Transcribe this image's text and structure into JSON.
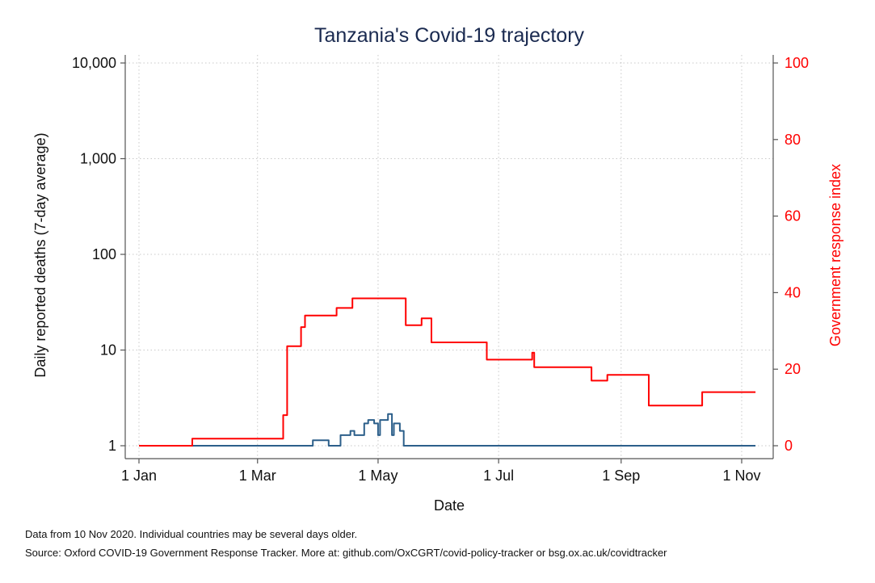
{
  "chart_data": {
    "type": "line",
    "title": "Tanzania's Covid-19 trajectory",
    "xlabel": "Date",
    "ylabel_left": "Daily reported deaths (7-day average)",
    "ylabel_right": "Government response index",
    "x_ticks": [
      {
        "date": "2020-01-01",
        "label": "1 Jan"
      },
      {
        "date": "2020-03-01",
        "label": "1 Mar"
      },
      {
        "date": "2020-05-01",
        "label": "1 May"
      },
      {
        "date": "2020-07-01",
        "label": "1 Jul"
      },
      {
        "date": "2020-09-01",
        "label": "1 Sep"
      },
      {
        "date": "2020-11-01",
        "label": "1 Nov"
      }
    ],
    "xlim": [
      "2020-01-01",
      "2020-11-10"
    ],
    "y_left": {
      "scale": "log",
      "lim": [
        1,
        10000
      ],
      "ticks": [
        {
          "value": 1,
          "label": "1"
        },
        {
          "value": 10,
          "label": "10"
        },
        {
          "value": 100,
          "label": "100"
        },
        {
          "value": 1000,
          "label": "1,000"
        },
        {
          "value": 10000,
          "label": "10,000"
        }
      ]
    },
    "y_right": {
      "scale": "linear",
      "lim": [
        0,
        100
      ],
      "ticks": [
        {
          "value": 0,
          "label": "0"
        },
        {
          "value": 20,
          "label": "20"
        },
        {
          "value": 40,
          "label": "40"
        },
        {
          "value": 60,
          "label": "60"
        },
        {
          "value": 80,
          "label": "80"
        },
        {
          "value": 100,
          "label": "100"
        }
      ]
    },
    "grid": true,
    "series": [
      {
        "axis": "left",
        "color": "#2c5f8a",
        "step": true,
        "points": [
          [
            "2020-01-01",
            1
          ],
          [
            "2020-03-29",
            1.14
          ],
          [
            "2020-04-06",
            1
          ],
          [
            "2020-04-12",
            1.29
          ],
          [
            "2020-04-17",
            1.43
          ],
          [
            "2020-04-19",
            1.29
          ],
          [
            "2020-04-24",
            1.71
          ],
          [
            "2020-04-26",
            1.86
          ],
          [
            "2020-04-29",
            1.71
          ],
          [
            "2020-05-01",
            1.29
          ],
          [
            "2020-05-02",
            1.86
          ],
          [
            "2020-05-06",
            2.14
          ],
          [
            "2020-05-08",
            1.29
          ],
          [
            "2020-05-09",
            1.71
          ],
          [
            "2020-05-12",
            1.43
          ],
          [
            "2020-05-14",
            1
          ],
          [
            "2020-11-08",
            1
          ]
        ]
      },
      {
        "axis": "right",
        "color": "#ff0000",
        "step": true,
        "points": [
          [
            "2020-01-01",
            0
          ],
          [
            "2020-01-28",
            1.85
          ],
          [
            "2020-03-14",
            8
          ],
          [
            "2020-03-16",
            26
          ],
          [
            "2020-03-23",
            31
          ],
          [
            "2020-03-25",
            34
          ],
          [
            "2020-04-10",
            36
          ],
          [
            "2020-04-18",
            38.5
          ],
          [
            "2020-05-15",
            31.5
          ],
          [
            "2020-05-23",
            33.3
          ],
          [
            "2020-05-28",
            27
          ],
          [
            "2020-06-25",
            22.5
          ],
          [
            "2020-07-18",
            24.3
          ],
          [
            "2020-07-19",
            20.5
          ],
          [
            "2020-08-17",
            17
          ],
          [
            "2020-08-25",
            18.5
          ],
          [
            "2020-09-15",
            10.5
          ],
          [
            "2020-10-12",
            14
          ],
          [
            "2020-11-08",
            14
          ]
        ]
      }
    ]
  },
  "notes": {
    "line1": "Data from 10 Nov 2020. Individual countries may be several days older.",
    "line2": "Source: Oxford COVID-19 Government Response Tracker. More at: github.com/OxCGRT/covid-policy-tracker or bsg.ox.ac.uk/covidtracker"
  }
}
